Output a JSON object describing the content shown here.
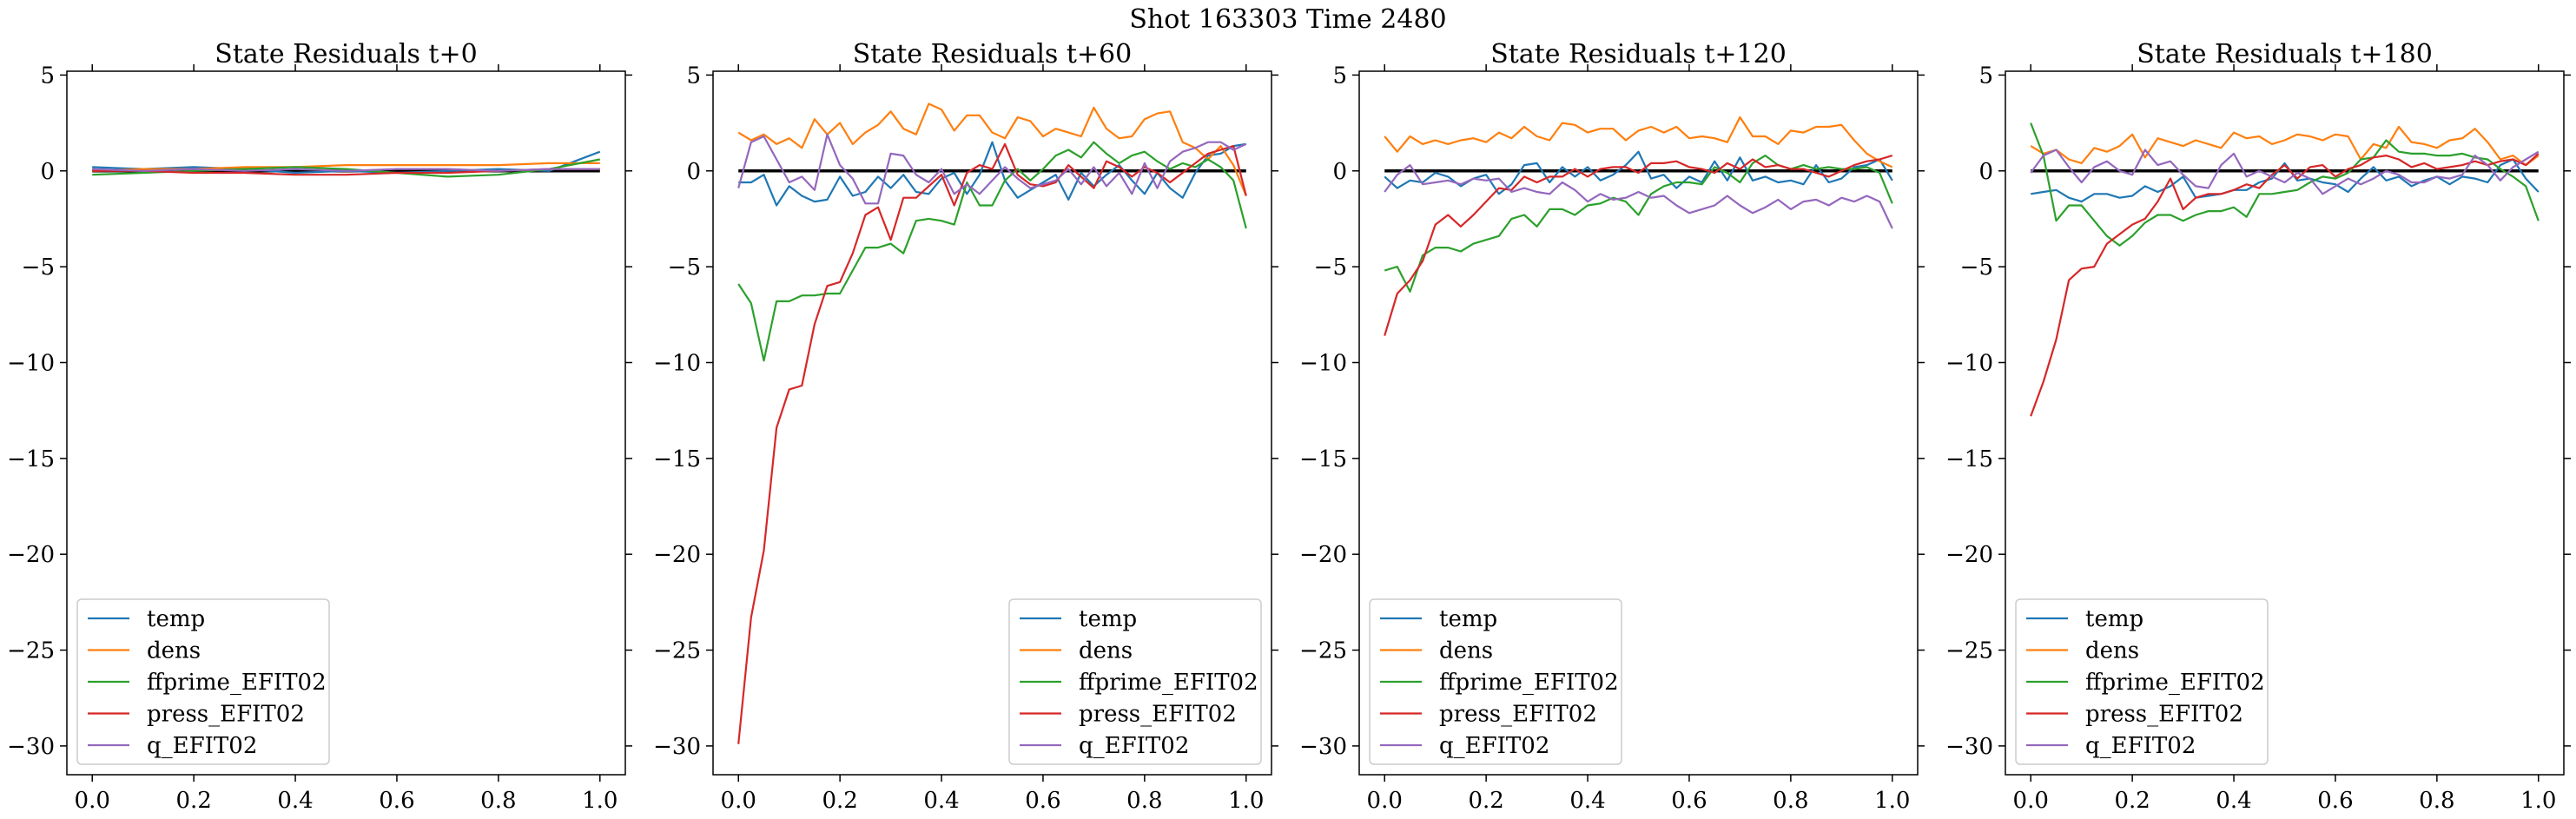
{
  "figure": {
    "suptitle": "Shot 163303   Time 2480"
  },
  "chart_data": [
    {
      "type": "line",
      "title": "State Residuals t+0",
      "xlabel": "",
      "ylabel": "",
      "xlim": [
        -0.05,
        1.05
      ],
      "ylim": [
        -31.5,
        5.2
      ],
      "xticks": [
        0.0,
        0.2,
        0.4,
        0.6,
        0.8,
        1.0
      ],
      "xtick_labels": [
        "0.0",
        "0.2",
        "0.4",
        "0.6",
        "0.8",
        "1.0"
      ],
      "yticks": [
        5,
        0,
        -5,
        -10,
        -15,
        -20,
        -25,
        -30
      ],
      "ytick_labels": [
        "5",
        "0",
        "−5",
        "−10",
        "−15",
        "−20",
        "−25",
        "−30"
      ],
      "reference_line": 0,
      "legend_position": "lower-left",
      "x": [
        0.0,
        0.1,
        0.2,
        0.3,
        0.4,
        0.5,
        0.6,
        0.7,
        0.8,
        0.9,
        1.0
      ],
      "series": [
        {
          "name": "temp",
          "color": "#1f77b4",
          "values": [
            0.2,
            0.1,
            0.2,
            0.1,
            -0.1,
            0.0,
            -0.1,
            0.0,
            0.1,
            0.0,
            1.0
          ]
        },
        {
          "name": "dens",
          "color": "#ff7f0e",
          "values": [
            0.0,
            0.1,
            0.1,
            0.2,
            0.2,
            0.3,
            0.3,
            0.3,
            0.3,
            0.4,
            0.4
          ]
        },
        {
          "name": "ffprime_EFIT02",
          "color": "#2ca02c",
          "values": [
            -0.2,
            -0.1,
            0.0,
            0.1,
            0.2,
            0.1,
            -0.1,
            -0.3,
            -0.2,
            0.1,
            0.6
          ]
        },
        {
          "name": "press_EFIT02",
          "color": "#d62728",
          "values": [
            0.0,
            0.0,
            -0.1,
            -0.1,
            -0.2,
            -0.2,
            -0.1,
            -0.1,
            0.0,
            0.1,
            0.1
          ]
        },
        {
          "name": "q_EFIT02",
          "color": "#9467bd",
          "values": [
            0.1,
            0.0,
            0.1,
            0.0,
            0.1,
            0.0,
            0.1,
            0.1,
            0.0,
            0.1,
            0.1
          ]
        }
      ]
    },
    {
      "type": "line",
      "title": "State Residuals t+60",
      "xlabel": "",
      "ylabel": "",
      "xlim": [
        -0.05,
        1.05
      ],
      "ylim": [
        -31.5,
        5.2
      ],
      "xticks": [
        0.0,
        0.2,
        0.4,
        0.6,
        0.8,
        1.0
      ],
      "xtick_labels": [
        "0.0",
        "0.2",
        "0.4",
        "0.6",
        "0.8",
        "1.0"
      ],
      "yticks": [
        5,
        0,
        -5,
        -10,
        -15,
        -20,
        -25,
        -30
      ],
      "ytick_labels": [
        "5",
        "0",
        "−5",
        "−10",
        "−15",
        "−20",
        "−25",
        "−30"
      ],
      "reference_line": 0,
      "legend_position": "lower-right",
      "x": [
        0.0,
        0.025,
        0.05,
        0.075,
        0.1,
        0.125,
        0.15,
        0.175,
        0.2,
        0.225,
        0.25,
        0.275,
        0.3,
        0.325,
        0.35,
        0.375,
        0.4,
        0.425,
        0.45,
        0.475,
        0.5,
        0.525,
        0.55,
        0.575,
        0.6,
        0.625,
        0.65,
        0.675,
        0.7,
        0.725,
        0.75,
        0.775,
        0.8,
        0.825,
        0.85,
        0.875,
        0.9,
        0.925,
        0.95,
        0.975,
        1.0
      ],
      "series": [
        {
          "name": "temp",
          "color": "#1f77b4",
          "values": [
            -0.6,
            -0.6,
            -0.2,
            -1.8,
            -0.8,
            -1.3,
            -1.6,
            -1.5,
            -0.3,
            -1.3,
            -1.1,
            -0.3,
            -0.9,
            -0.2,
            -1.1,
            -1.2,
            -0.4,
            -0.1,
            -1.2,
            -0.2,
            1.5,
            -0.5,
            -1.4,
            -1.0,
            -0.6,
            -0.2,
            -1.5,
            -0.1,
            -0.8,
            -0.2,
            0.3,
            -0.5,
            -1.2,
            -0.1,
            -0.9,
            -1.4,
            -0.1,
            0.8,
            0.9,
            1.3,
            1.4
          ]
        },
        {
          "name": "dens",
          "color": "#ff7f0e",
          "values": [
            2.0,
            1.6,
            1.9,
            1.4,
            1.7,
            1.2,
            2.7,
            1.9,
            2.5,
            1.4,
            2.0,
            2.4,
            3.1,
            2.2,
            1.9,
            3.5,
            3.2,
            2.1,
            2.9,
            2.9,
            2.0,
            1.7,
            2.8,
            2.6,
            1.8,
            2.2,
            2.0,
            1.8,
            3.3,
            2.2,
            1.7,
            1.8,
            2.7,
            3.0,
            3.1,
            1.5,
            1.2,
            0.6,
            1.3,
            0.3,
            -1.3
          ]
        },
        {
          "name": "ffprime_EFIT02",
          "color": "#2ca02c",
          "values": [
            -5.9,
            -6.9,
            -9.9,
            -6.8,
            -6.8,
            -6.5,
            -6.5,
            -6.4,
            -6.4,
            -5.2,
            -4.0,
            -4.0,
            -3.8,
            -4.3,
            -2.6,
            -2.5,
            -2.6,
            -2.8,
            -0.6,
            -1.8,
            -1.8,
            -0.5,
            0.1,
            -0.5,
            0.1,
            0.8,
            1.1,
            0.7,
            1.5,
            0.9,
            0.4,
            0.8,
            1.0,
            0.5,
            0.1,
            0.4,
            0.2,
            0.6,
            0.2,
            -0.5,
            -3.0
          ]
        },
        {
          "name": "press_EFIT02",
          "color": "#d62728",
          "values": [
            -29.9,
            -23.3,
            -19.8,
            -13.4,
            -11.4,
            -11.2,
            -8.0,
            -6.0,
            -5.8,
            -4.3,
            -2.3,
            -1.9,
            -3.6,
            -1.4,
            -1.4,
            -0.8,
            -0.2,
            -1.8,
            -0.1,
            0.3,
            0.1,
            1.4,
            -0.2,
            -0.7,
            -0.8,
            -0.6,
            0.3,
            -0.3,
            -0.9,
            0.5,
            0.2,
            -0.3,
            0.2,
            -0.1,
            -0.6,
            -0.1,
            0.4,
            0.9,
            1.1,
            1.3,
            -1.3
          ]
        },
        {
          "name": "q_EFIT02",
          "color": "#9467bd",
          "values": [
            -0.9,
            1.5,
            1.8,
            0.6,
            -0.6,
            -0.3,
            -1.0,
            1.9,
            0.3,
            -0.4,
            -1.7,
            -1.7,
            0.9,
            0.8,
            -0.2,
            -0.6,
            0.1,
            -1.2,
            -0.7,
            -1.2,
            -0.5,
            0.2,
            -0.4,
            -0.9,
            -0.7,
            -0.5,
            0.1,
            -0.7,
            0.2,
            -0.8,
            -0.1,
            -1.2,
            0.4,
            -0.9,
            0.5,
            1.0,
            1.2,
            1.5,
            1.5,
            1.1,
            1.4
          ]
        }
      ]
    },
    {
      "type": "line",
      "title": "State Residuals t+120",
      "xlabel": "",
      "ylabel": "",
      "xlim": [
        -0.05,
        1.05
      ],
      "ylim": [
        -31.5,
        5.2
      ],
      "xticks": [
        0.0,
        0.2,
        0.4,
        0.6,
        0.8,
        1.0
      ],
      "xtick_labels": [
        "0.0",
        "0.2",
        "0.4",
        "0.6",
        "0.8",
        "1.0"
      ],
      "yticks": [
        5,
        0,
        -5,
        -10,
        -15,
        -20,
        -25,
        -30
      ],
      "ytick_labels": [
        "5",
        "0",
        "−5",
        "−10",
        "−15",
        "−20",
        "−25",
        "−30"
      ],
      "reference_line": 0,
      "legend_position": "lower-left",
      "x": [
        0.0,
        0.025,
        0.05,
        0.075,
        0.1,
        0.125,
        0.15,
        0.175,
        0.2,
        0.225,
        0.25,
        0.275,
        0.3,
        0.325,
        0.35,
        0.375,
        0.4,
        0.425,
        0.45,
        0.475,
        0.5,
        0.525,
        0.55,
        0.575,
        0.6,
        0.625,
        0.65,
        0.675,
        0.7,
        0.725,
        0.75,
        0.775,
        0.8,
        0.825,
        0.85,
        0.875,
        0.9,
        0.925,
        0.95,
        0.975,
        1.0
      ],
      "series": [
        {
          "name": "temp",
          "color": "#1f77b4",
          "values": [
            -0.3,
            -0.9,
            -0.5,
            -0.6,
            -0.1,
            -0.3,
            -0.8,
            -0.4,
            -0.2,
            -1.2,
            -0.7,
            0.3,
            0.4,
            -0.6,
            0.2,
            -0.3,
            0.2,
            -0.5,
            -0.2,
            0.3,
            1.0,
            -0.4,
            -0.2,
            -0.9,
            -0.3,
            -0.6,
            0.5,
            -0.5,
            0.7,
            -0.5,
            -0.3,
            -0.6,
            -0.5,
            -0.7,
            0.3,
            -0.6,
            -0.4,
            0.2,
            0.3,
            0.6,
            -0.5
          ]
        },
        {
          "name": "dens",
          "color": "#ff7f0e",
          "values": [
            1.8,
            1.0,
            1.8,
            1.4,
            1.6,
            1.4,
            1.6,
            1.7,
            1.5,
            2.0,
            1.7,
            2.3,
            1.8,
            1.6,
            2.5,
            2.4,
            2.0,
            2.2,
            2.2,
            1.6,
            2.1,
            2.3,
            2.0,
            2.3,
            1.7,
            1.8,
            1.7,
            1.5,
            2.8,
            1.8,
            1.8,
            1.4,
            2.1,
            2.0,
            2.3,
            2.3,
            2.4,
            1.6,
            0.9,
            0.5,
            0.2
          ]
        },
        {
          "name": "ffprime_EFIT02",
          "color": "#2ca02c",
          "values": [
            -5.2,
            -5.0,
            -6.3,
            -4.4,
            -4.0,
            -4.0,
            -4.2,
            -3.8,
            -3.6,
            -3.4,
            -2.5,
            -2.3,
            -2.9,
            -2.0,
            -2.0,
            -2.3,
            -1.8,
            -1.7,
            -1.4,
            -1.6,
            -2.3,
            -1.2,
            -0.8,
            -0.6,
            -0.6,
            -0.7,
            0.2,
            -0.1,
            -0.6,
            0.4,
            0.8,
            0.3,
            0.1,
            0.3,
            0.1,
            0.2,
            0.1,
            0.1,
            0.2,
            -0.1,
            -1.7
          ]
        },
        {
          "name": "press_EFIT02",
          "color": "#d62728",
          "values": [
            -8.6,
            -6.4,
            -5.7,
            -4.7,
            -2.8,
            -2.3,
            -2.9,
            -2.3,
            -1.6,
            -0.9,
            -1.0,
            -0.3,
            -0.6,
            -0.3,
            -0.3,
            0.1,
            -0.3,
            0.1,
            0.2,
            0.2,
            -0.1,
            0.4,
            0.4,
            0.5,
            0.2,
            0.1,
            -0.1,
            0.4,
            0.1,
            0.6,
            0.2,
            0.3,
            0.1,
            0.1,
            -0.1,
            -0.3,
            0.0,
            0.3,
            0.5,
            0.6,
            0.8
          ]
        },
        {
          "name": "q_EFIT02",
          "color": "#9467bd",
          "values": [
            -1.1,
            -0.2,
            0.3,
            -0.7,
            -0.6,
            -0.5,
            -0.7,
            -0.4,
            -0.5,
            -0.4,
            -1.1,
            -0.9,
            -1.1,
            -1.2,
            -0.6,
            -1.0,
            -1.6,
            -1.2,
            -1.5,
            -1.4,
            -1.1,
            -1.4,
            -1.3,
            -1.8,
            -2.2,
            -2.0,
            -1.8,
            -1.3,
            -1.8,
            -2.2,
            -1.9,
            -1.5,
            -2.0,
            -1.6,
            -1.5,
            -1.8,
            -1.4,
            -1.6,
            -1.3,
            -1.6,
            -3.0
          ]
        }
      ]
    },
    {
      "type": "line",
      "title": "State Residuals t+180",
      "xlabel": "",
      "ylabel": "",
      "xlim": [
        -0.05,
        1.05
      ],
      "ylim": [
        -31.5,
        5.2
      ],
      "xticks": [
        0.0,
        0.2,
        0.4,
        0.6,
        0.8,
        1.0
      ],
      "xtick_labels": [
        "0.0",
        "0.2",
        "0.4",
        "0.6",
        "0.8",
        "1.0"
      ],
      "yticks": [
        5,
        0,
        -5,
        -10,
        -15,
        -20,
        -25,
        -30
      ],
      "ytick_labels": [
        "5",
        "0",
        "−5",
        "−10",
        "−15",
        "−20",
        "−25",
        "−30"
      ],
      "reference_line": 0,
      "legend_position": "lower-left",
      "x": [
        0.0,
        0.025,
        0.05,
        0.075,
        0.1,
        0.125,
        0.15,
        0.175,
        0.2,
        0.225,
        0.25,
        0.275,
        0.3,
        0.325,
        0.35,
        0.375,
        0.4,
        0.425,
        0.45,
        0.475,
        0.5,
        0.525,
        0.55,
        0.575,
        0.6,
        0.625,
        0.65,
        0.675,
        0.7,
        0.725,
        0.75,
        0.775,
        0.8,
        0.825,
        0.85,
        0.875,
        0.9,
        0.925,
        0.95,
        0.975,
        1.0
      ],
      "series": [
        {
          "name": "temp",
          "color": "#1f77b4",
          "values": [
            -1.2,
            -1.1,
            -1.0,
            -1.4,
            -1.6,
            -1.2,
            -1.2,
            -1.4,
            -1.3,
            -0.8,
            -1.1,
            -0.8,
            -0.3,
            -1.4,
            -1.3,
            -1.2,
            -1.0,
            -1.0,
            -0.6,
            -0.4,
            0.4,
            -0.5,
            -0.4,
            -0.6,
            -0.7,
            -1.1,
            -0.4,
            0.2,
            -0.5,
            -0.3,
            -0.8,
            -0.5,
            -0.3,
            -0.7,
            -0.3,
            -0.4,
            -0.6,
            0.3,
            0.6,
            -0.4,
            -1.1
          ]
        },
        {
          "name": "dens",
          "color": "#ff7f0e",
          "values": [
            1.3,
            0.9,
            1.1,
            0.6,
            0.4,
            1.2,
            1.0,
            1.3,
            1.9,
            0.7,
            1.7,
            1.5,
            1.3,
            1.6,
            1.4,
            1.2,
            2.0,
            1.7,
            1.8,
            1.4,
            1.6,
            1.9,
            1.8,
            1.6,
            1.9,
            1.8,
            0.6,
            1.4,
            1.2,
            2.3,
            1.5,
            1.4,
            1.2,
            1.6,
            1.7,
            2.2,
            1.5,
            0.6,
            0.8,
            0.3,
            0.8
          ]
        },
        {
          "name": "ffprime_EFIT02",
          "color": "#2ca02c",
          "values": [
            2.5,
            0.8,
            -2.6,
            -1.8,
            -1.8,
            -2.6,
            -3.4,
            -3.9,
            -3.4,
            -2.7,
            -2.3,
            -2.3,
            -2.6,
            -2.3,
            -2.1,
            -2.1,
            -1.9,
            -2.4,
            -1.2,
            -1.2,
            -1.1,
            -1.0,
            -0.6,
            -0.3,
            -0.4,
            -0.1,
            0.6,
            0.7,
            1.6,
            1.0,
            0.9,
            0.9,
            0.8,
            0.8,
            0.9,
            0.7,
            0.6,
            0.1,
            -0.3,
            -0.8,
            -2.6
          ]
        },
        {
          "name": "press_EFIT02",
          "color": "#d62728",
          "values": [
            -12.8,
            -11.0,
            -8.8,
            -5.7,
            -5.1,
            -5.0,
            -3.8,
            -3.3,
            -2.8,
            -2.5,
            -1.6,
            -0.4,
            -2.0,
            -1.4,
            -1.2,
            -1.2,
            -1.0,
            -0.7,
            -0.9,
            -0.2,
            0.3,
            -0.4,
            0.2,
            0.3,
            -0.3,
            0.1,
            0.3,
            0.7,
            0.8,
            0.6,
            0.2,
            0.4,
            0.1,
            0.2,
            0.3,
            0.5,
            0.3,
            0.5,
            0.6,
            0.3,
            0.9
          ]
        },
        {
          "name": "q_EFIT02",
          "color": "#9467bd",
          "values": [
            -0.1,
            0.8,
            1.1,
            0.2,
            -0.6,
            0.2,
            0.5,
            0.0,
            -0.2,
            1.1,
            0.3,
            0.5,
            -0.2,
            -0.8,
            -0.9,
            0.3,
            0.9,
            -0.3,
            0.0,
            -0.3,
            -0.6,
            -0.1,
            -0.4,
            -1.2,
            -0.8,
            -0.4,
            -0.7,
            -0.4,
            0.0,
            -0.2,
            -0.6,
            -0.6,
            -0.3,
            -0.4,
            -0.2,
            0.8,
            0.3,
            -0.5,
            0.2,
            0.6,
            1.0
          ]
        }
      ]
    }
  ]
}
